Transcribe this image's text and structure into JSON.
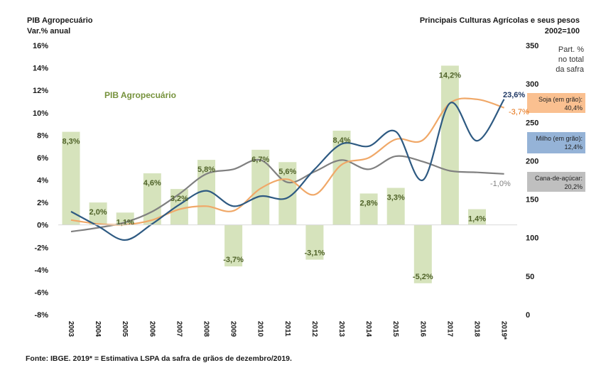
{
  "chart_data": {
    "type": "bar+line",
    "title_left": "PIB Agropecuário",
    "subtitle_left": "Var.% anual",
    "title_right": "Principais Culturas Agrícolas e seus pesos",
    "subtitle_right": "2002=100",
    "inline_series_label": "PIB Agropecuário",
    "part_label": [
      "Part. %",
      "no total",
      "da safra"
    ],
    "categories": [
      "2003",
      "2004",
      "2005",
      "2006",
      "2007",
      "2008",
      "2009",
      "2010",
      "2011",
      "2012",
      "2013",
      "2014",
      "2015",
      "2016",
      "2017",
      "2018",
      "2019*"
    ],
    "left_axis": {
      "ylim": [
        -8,
        16
      ],
      "ticks": [
        16,
        14,
        12,
        10,
        8,
        6,
        4,
        2,
        0,
        -2,
        -4,
        -6,
        -8
      ],
      "tick_labels": [
        "16%",
        "14%",
        "12%",
        "10%",
        "8%",
        "6%",
        "4%",
        "2%",
        "0%",
        "-2%",
        "-4%",
        "-6%",
        "-8%"
      ]
    },
    "right_axis": {
      "ylim": [
        0,
        350
      ],
      "ticks": [
        350,
        300,
        250,
        200,
        150,
        100,
        50,
        0
      ],
      "tick_labels": [
        "350",
        "300",
        "250",
        "200",
        "150",
        "100",
        "50",
        "0"
      ]
    },
    "bars": {
      "name": "PIB Agropecuário",
      "color": "#d6e3bc",
      "label_color": "#4f6228",
      "values": [
        8.3,
        2.0,
        1.1,
        4.6,
        3.2,
        5.8,
        -3.7,
        6.7,
        5.6,
        -3.1,
        8.4,
        2.8,
        3.3,
        -5.2,
        14.2,
        1.4,
        null
      ],
      "labels": [
        "8,3%",
        "2,0%",
        "1,1%",
        "4,6%",
        "3,2%",
        "5,8%",
        "-3,7%",
        "6,7%",
        "5,6%",
        "-3,1%",
        "8,4%",
        "2,8%",
        "3,3%",
        "-5,2%",
        "14,2%",
        "1,4%",
        ""
      ]
    },
    "series": [
      {
        "name": "Soja (em grão)",
        "legend": [
          "Soja (em grão):",
          "40,4%"
        ],
        "color": "#f0a868",
        "legend_bg": "#fac090",
        "end_label": "-3,7%",
        "values": [
          123,
          118,
          117,
          123,
          137,
          141,
          135,
          164,
          176,
          156,
          195,
          204,
          228,
          227,
          275,
          280,
          269
        ]
      },
      {
        "name": "Milho (em grão)",
        "legend": [
          "Milho (em grão):",
          "12,4%"
        ],
        "color": "#2e5a82",
        "legend_bg": "#95b3d7",
        "end_label": "23,6%",
        "values": [
          134,
          115,
          97,
          118,
          143,
          161,
          141,
          154,
          152,
          189,
          222,
          219,
          238,
          175,
          275,
          226,
          280
        ]
      },
      {
        "name": "Cana-de-açúcar",
        "legend": [
          "Cana-de-açúcar:",
          "20,2%"
        ],
        "color": "#808080",
        "legend_bg": "#bfbfbf",
        "end_label": "-1,0%",
        "values": [
          108,
          113,
          120,
          134,
          157,
          183,
          189,
          201,
          172,
          186,
          201,
          189,
          206,
          199,
          187,
          185,
          183
        ]
      }
    ],
    "grid": false,
    "legend_position": "right"
  },
  "footer": {
    "source": "Fonte: IBGE. 2019* = Estimativa  LSPA da safra de grãos de  dezembro/2019."
  }
}
